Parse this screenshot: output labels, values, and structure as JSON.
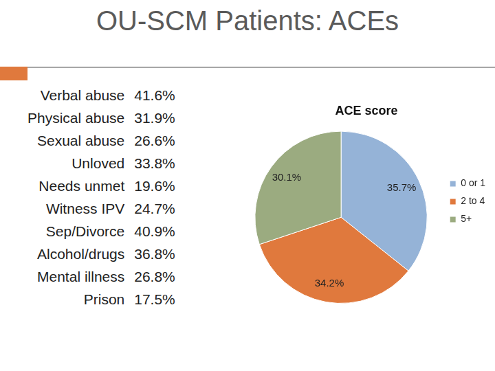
{
  "title": "OU-SCM Patients: ACEs",
  "items": [
    {
      "label": "Verbal abuse",
      "value": "41.6%"
    },
    {
      "label": "Physical abuse",
      "value": "31.9%"
    },
    {
      "label": "Sexual abuse",
      "value": "26.6%"
    },
    {
      "label": "Unloved",
      "value": "33.8%"
    },
    {
      "label": "Needs unmet",
      "value": "19.6%"
    },
    {
      "label": "Witness IPV",
      "value": "24.7%"
    },
    {
      "label": "Sep/Divorce",
      "value": "40.9%"
    },
    {
      "label": "Alcohol/drugs",
      "value": "36.8%"
    },
    {
      "label": "Mental illness",
      "value": "26.8%"
    },
    {
      "label": "Prison",
      "value": "17.5%"
    }
  ],
  "chart_data": {
    "type": "pie",
    "title": "ACE score",
    "categories": [
      "0 or 1",
      "2 to 4",
      "5+"
    ],
    "values": [
      35.7,
      34.2,
      30.1
    ],
    "value_labels": [
      "35.7%",
      "34.2%",
      "30.1%"
    ],
    "colors": [
      "#95b3d7",
      "#e0793d",
      "#9bab80"
    ],
    "legend": "right",
    "data_labels": true
  }
}
